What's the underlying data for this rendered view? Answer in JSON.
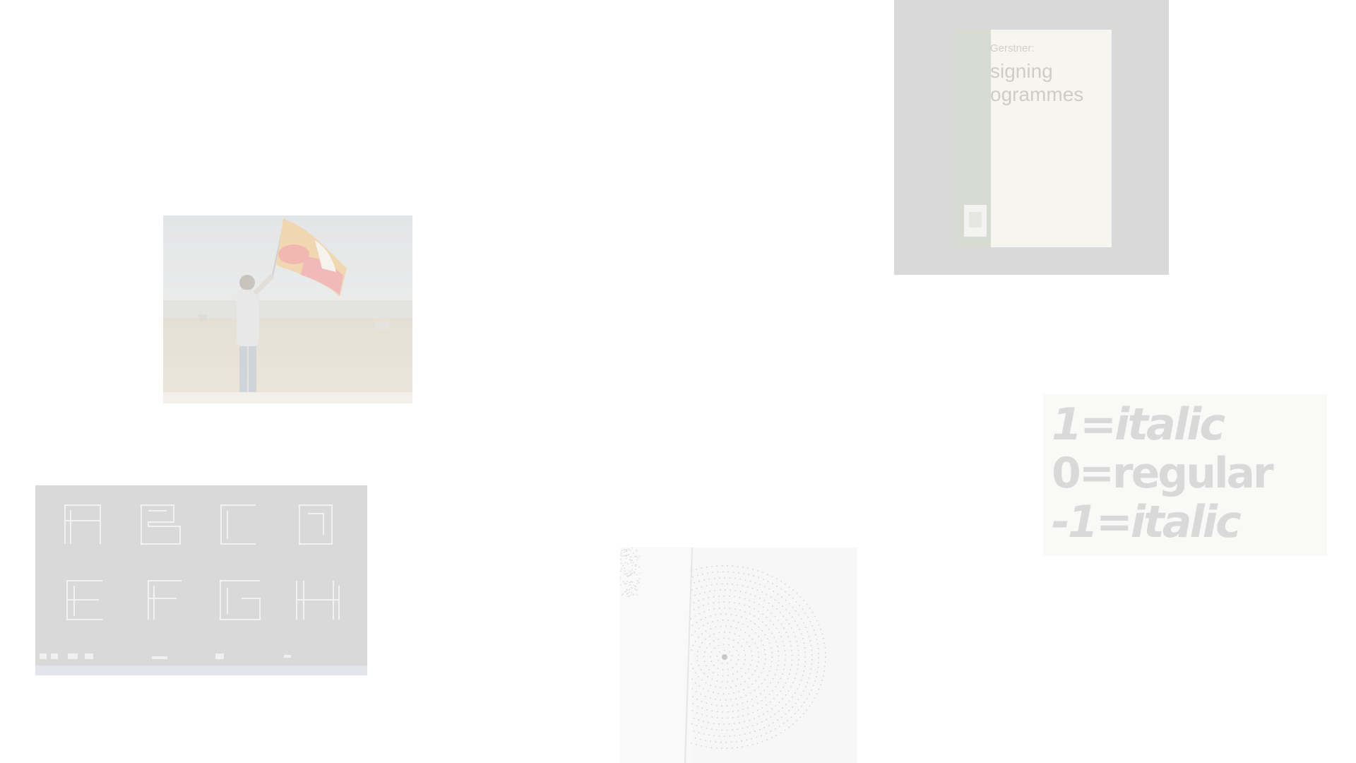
{
  "book": {
    "author": "Gerstner:",
    "title_line1": "signing",
    "title_line2": "ogrammes"
  },
  "type_specimen": {
    "line1": "1=italic",
    "line2": "0=regular",
    "line3": "-1=italic"
  },
  "colors": {
    "background": "#ffffff",
    "card_gray": "#d8d8d8",
    "book_cover": "#f6f5ef",
    "book_spine": "#d5d9d0",
    "flag_yellow": "#efd8b0",
    "flag_red": "#efb7b7"
  }
}
